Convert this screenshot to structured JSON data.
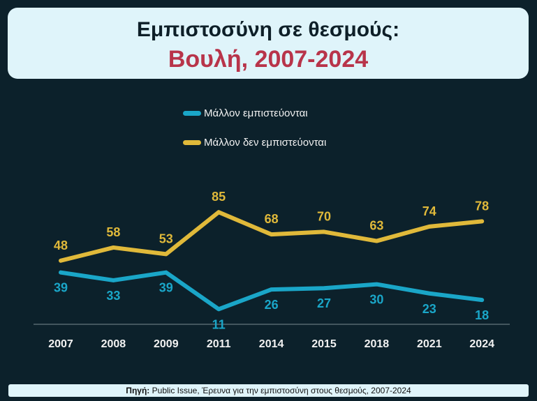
{
  "chart_data": {
    "type": "line",
    "title": "Εμπιστοσύνη σε θεσμούς:",
    "subtitle": "Βουλή, 2007-2024",
    "categories": [
      "2007",
      "2008",
      "2009",
      "2011",
      "2014",
      "2015",
      "2018",
      "2021",
      "2024"
    ],
    "series": [
      {
        "name": "Μάλλον εμπιστεύονται",
        "color": "#1aa6c8",
        "values": [
          39,
          33,
          39,
          11,
          26,
          27,
          30,
          23,
          18
        ]
      },
      {
        "name": "Μάλλον δεν εμπιστεύονται",
        "color": "#e0b93a",
        "values": [
          48,
          58,
          53,
          85,
          68,
          70,
          63,
          74,
          78
        ]
      }
    ],
    "ylim": [
      0,
      100
    ],
    "grid": false,
    "legend_position": "top-center",
    "xlabel": "",
    "ylabel": ""
  },
  "source": {
    "label": "Πηγή:",
    "text": "Public Issue, Έρευνα για την εμπιστοσύνη στους θεσμούς, 2007-2024"
  }
}
